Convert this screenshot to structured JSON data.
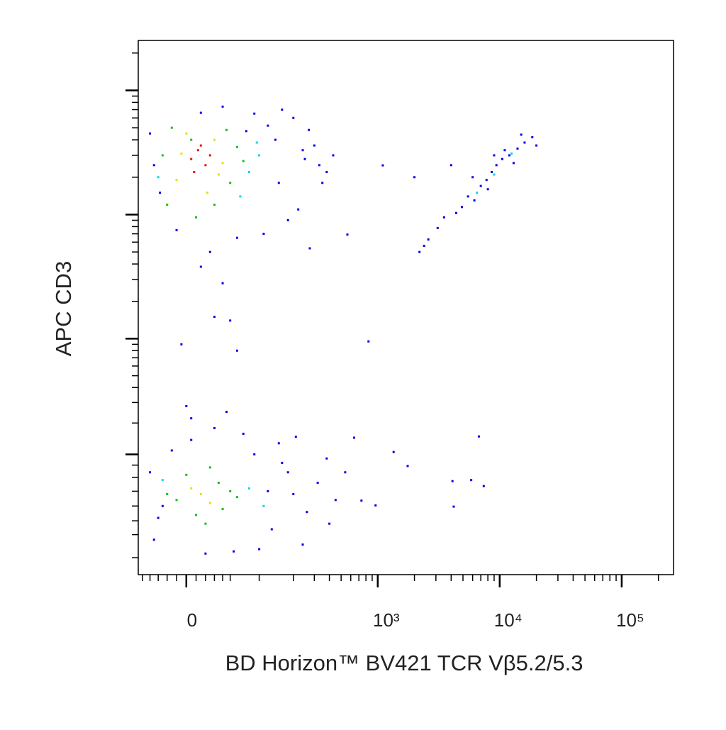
{
  "chart_data": {
    "type": "scatter",
    "x_label": "BD Horizon™ BV421 TCR Vβ5.2/5.3",
    "y_label": "APC CD3",
    "xscale": "biexponential",
    "yscale": "biexponential",
    "xlim": [
      -56,
      266000
    ],
    "ylim": [
      -148,
      252500
    ],
    "xticks": [
      0,
      {
        "value": 1000,
        "label": "10³"
      },
      {
        "value": 10000,
        "label": "10⁴"
      },
      {
        "value": 100000,
        "label": "10⁵"
      }
    ],
    "yticks": [
      100,
      1000,
      10000,
      100000
    ],
    "xminorticks": [
      -50,
      -40,
      -30,
      -20,
      -10,
      10,
      20,
      30,
      40,
      50,
      100,
      200,
      300,
      400,
      500,
      600,
      700,
      800,
      900,
      2000,
      3000,
      4000,
      5000,
      6000,
      7000,
      8000,
      9000,
      20000,
      30000,
      40000,
      50000,
      60000,
      70000,
      80000,
      90000,
      200000
    ],
    "yminorticks": [
      -100,
      -50,
      -25,
      0,
      25,
      50,
      75,
      200,
      300,
      400,
      500,
      600,
      700,
      800,
      900,
      2000,
      3000,
      4000,
      5000,
      6000,
      7000,
      8000,
      9000,
      20000,
      30000,
      40000,
      50000,
      60000,
      70000,
      80000,
      90000,
      200000
    ],
    "series": [
      {
        "color": "#0000ee",
        "x": [
          -35,
          -40,
          120,
          150,
          200,
          250,
          300,
          380,
          430,
          180,
          90,
          -28,
          110,
          140,
          220,
          270,
          330,
          160,
          -10,
          60,
          25,
          15,
          75,
          240,
          350,
          40,
          15,
          40,
          30,
          50,
          60,
          -5,
          0,
          5,
          45,
          840,
          275,
          563,
          1100,
          2200,
          2400,
          2600,
          3100,
          3500,
          4400,
          4900,
          5500,
          6200,
          7000,
          7800,
          8600,
          9400,
          10500,
          12000,
          14000,
          16000,
          18500,
          20000,
          13000,
          8000,
          6000,
          11000,
          2000,
          4000,
          15000,
          9000,
          -40,
          -35,
          -30,
          90,
          130,
          160,
          200,
          260,
          320,
          400,
          450,
          150,
          100,
          70,
          -15,
          30,
          55,
          180,
          240,
          380,
          20,
          5,
          -25,
          120,
          210,
          640,
          1350,
          1760,
          4100,
          5840,
          7400,
          6750,
          4200,
          960,
          735,
          540
        ],
        "y": [
          25000,
          45000,
          52000,
          18000,
          60000,
          28000,
          36000,
          22000,
          30000,
          9000,
          65000,
          15000,
          7000,
          40000,
          11000,
          48000,
          25000,
          70000,
          7500,
          6500,
          5000,
          66000,
          47000,
          33000,
          18000,
          74000,
          3800,
          2800,
          1500,
          1400,
          800,
          900,
          280,
          220,
          250,
          950,
          5350,
          6900,
          24900,
          5000,
          5600,
          6300,
          7800,
          9500,
          10300,
          11500,
          14000,
          13000,
          17000,
          19000,
          22000,
          25000,
          28000,
          30000,
          34000,
          38000,
          42000,
          36000,
          26000,
          16000,
          20000,
          33000,
          20000,
          25000,
          44000,
          30000,
          60,
          -60,
          -20,
          100,
          -40,
          80,
          20,
          -10,
          40,
          -30,
          10,
          130,
          -80,
          160,
          110,
          180,
          -85,
          60,
          -70,
          90,
          -90,
          140,
          0,
          25,
          150,
          147,
          106,
          73,
          43,
          45,
          34,
          151,
          -1,
          1,
          9,
          60
        ]
      },
      {
        "color": "#00d8e8",
        "x": [
          80,
          -30,
          95,
          65,
          100,
          9000,
          12500,
          6500,
          80,
          110,
          -25
        ],
        "y": [
          22000,
          20000,
          38000,
          14000,
          30000,
          21000,
          31000,
          15000,
          30,
          0,
          45
        ]
      },
      {
        "color": "#10c010",
        "x": [
          -20,
          50,
          60,
          -15,
          10,
          45,
          70,
          -25,
          30,
          5,
          -10,
          10,
          35,
          50,
          20,
          0,
          -20,
          40,
          60,
          25
        ],
        "y": [
          12000,
          18000,
          35000,
          50000,
          9500,
          48000,
          27000,
          30000,
          12000,
          40000,
          10,
          -15,
          40,
          25,
          -30,
          55,
          20,
          -5,
          15,
          70
        ]
      },
      {
        "color": "#e8e000",
        "x": [
          -10,
          30,
          40,
          0,
          22,
          -5,
          35,
          15,
          25,
          5
        ],
        "y": [
          19000,
          40000,
          26000,
          45000,
          15000,
          31000,
          21000,
          20,
          5,
          30
        ]
      },
      {
        "color": "#e81000",
        "x": [
          5,
          12,
          20,
          8,
          15,
          25
        ],
        "y": [
          28000,
          33000,
          25000,
          22000,
          36000,
          30000
        ]
      }
    ]
  }
}
